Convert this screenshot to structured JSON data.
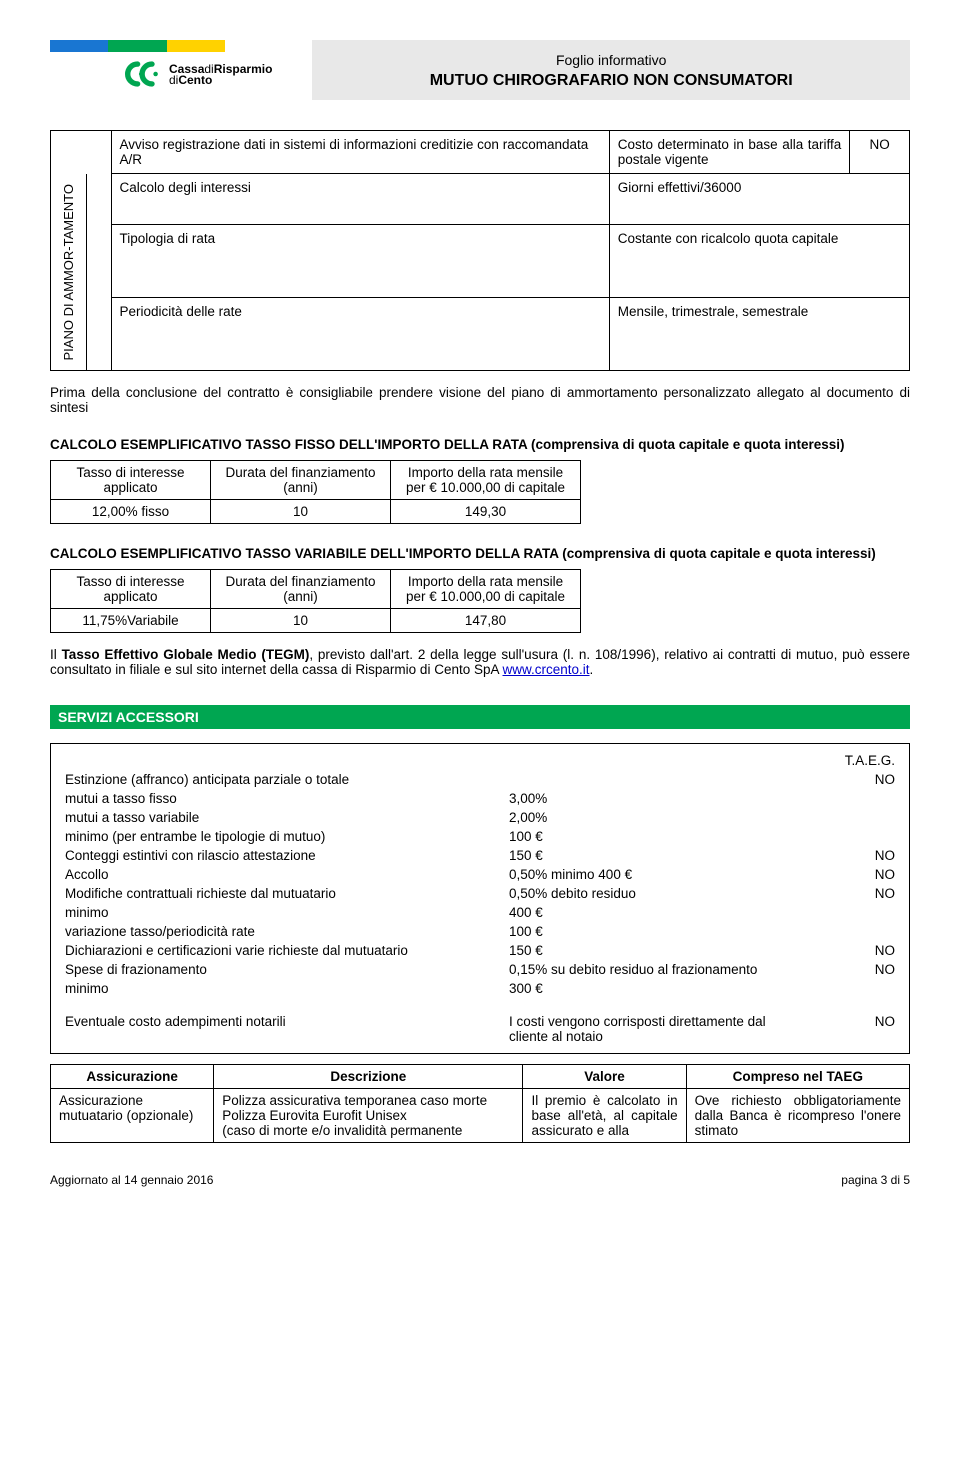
{
  "header": {
    "bank_name_1": "Cassa",
    "bank_name_2": "Risparmio",
    "bank_name_3": "Cento",
    "di1": "di",
    "di2": "di",
    "subtitle": "Foglio informativo",
    "title": "MUTUO CHIROGRAFARIO NON CONSUMATORI"
  },
  "top_table": {
    "row1_label": "Avviso registrazione dati in sistemi di informazioni creditizie con raccomandata A/R",
    "row1_value": "Costo determinato in base alla tariffa postale vigente",
    "row1_flag": "NO",
    "vertical_label": "PIANO DI AMMOR-TAMENTO",
    "row2_label": "Calcolo degli interessi",
    "row2_value": "Giorni effettivi/36000",
    "row3_label": "Tipologia di rata",
    "row3_value": "Costante con ricalcolo quota capitale",
    "row4_label": "Periodicità delle rate",
    "row4_value": "Mensile, trimestrale, semestrale"
  },
  "note1": "Prima della conclusione del contratto è consigliabile prendere visione del piano di ammortamento personalizzato allegato al documento di sintesi",
  "calc_fisso": {
    "title": "CALCOLO ESEMPLIFICATIVO TASSO FISSO DELL'IMPORTO DELLA RATA (comprensiva di quota capitale e quota interessi)",
    "h1": "Tasso di interesse applicato",
    "h2": "Durata del finanziamento (anni)",
    "h3": "Importo della rata mensile per € 10.000,00 di capitale",
    "r1c1": "12,00% fisso",
    "r1c2": "10",
    "r1c3": "149,30"
  },
  "calc_var": {
    "title": "CALCOLO ESEMPLIFICATIVO TASSO VARIABILE DELL'IMPORTO DELLA RATA (comprensiva di quota capitale e quota interessi)",
    "h1": "Tasso di interesse applicato",
    "h2": "Durata del finanziamento (anni)",
    "h3": "Importo della rata mensile per € 10.000,00 di capitale",
    "r1c1": "11,75%Variabile",
    "r1c2": "10",
    "r1c3": "147,80"
  },
  "tegm_prefix": "Il ",
  "tegm_bold": "Tasso Effettivo Globale Medio (TEGM)",
  "tegm_body": ", previsto dall'art. 2 della legge sull'usura (l. n. 108/1996), relativo ai contratti di mutuo, può essere consultato in filiale e sul sito internet della cassa di Risparmio di Cento SpA ",
  "tegm_link": "www.crcento.it",
  "tegm_suffix": ".",
  "servizi_title": "SERVIZI ACCESSORI",
  "servizi": {
    "taeg_label": "T.A.E.G.",
    "rows": [
      {
        "c1": "Estinzione (affranco) anticipata parziale o totale",
        "c2": "",
        "c3": "NO",
        "indent": 0
      },
      {
        "c1": "mutui a tasso fisso",
        "c2": "3,00%",
        "c3": "",
        "indent": 1
      },
      {
        "c1": "mutui a tasso variabile",
        "c2": "2,00%",
        "c3": "",
        "indent": 1
      },
      {
        "c1": "minimo (per entrambe le tipologie di mutuo)",
        "c2": "100 €",
        "c3": "",
        "indent": 1
      },
      {
        "c1": "Conteggi estintivi con rilascio attestazione",
        "c2": "150 €",
        "c3": "NO",
        "indent": 0
      },
      {
        "c1": "Accollo",
        "c2": "0,50% minimo 400 €",
        "c3": "NO",
        "indent": 0
      },
      {
        "c1": "Modifiche contrattuali richieste dal mutuatario",
        "c2": "0,50% debito residuo",
        "c3": "NO",
        "indent": 0
      },
      {
        "c1": "minimo",
        "c2": "400 €",
        "c3": "",
        "indent": 2
      },
      {
        "c1": "variazione tasso/periodicità rate",
        "c2": "100 €",
        "c3": "",
        "indent": 1
      },
      {
        "c1": "Dichiarazioni e certificazioni varie richieste dal mutuatario",
        "c2": "150 €",
        "c3": "NO",
        "indent": 0
      },
      {
        "c1": "Spese di frazionamento",
        "c2": "0,15% su debito residuo al frazionamento",
        "c3": "NO",
        "indent": 0
      },
      {
        "c1": "minimo",
        "c2": "300 €",
        "c3": "",
        "indent": 2
      }
    ],
    "notary_label": "Eventuale costo adempimenti notarili",
    "notary_value": "I costi vengono corrisposti direttamente dal cliente al notaio",
    "notary_flag": "NO"
  },
  "insurance": {
    "h1": "Assicurazione",
    "h2": "Descrizione",
    "h3": "Valore",
    "h4": "Compreso nel TAEG",
    "r1c1": "Assicurazione mutuatario (opzionale)",
    "r1c2": "Polizza assicurativa temporanea caso morte\nPolizza Eurovita Eurofit Unisex\n(caso di morte e/o invalidità permanente",
    "r1c3": "Il premio è calcolato in base all'età, al capitale assicurato e alla",
    "r1c4": "Ove richiesto obbligatoriamente dalla Banca è ricompreso l'onere stimato"
  },
  "footer": {
    "left": "Aggiornato al 14 gennaio 2016",
    "right": "pagina 3 di 5"
  }
}
